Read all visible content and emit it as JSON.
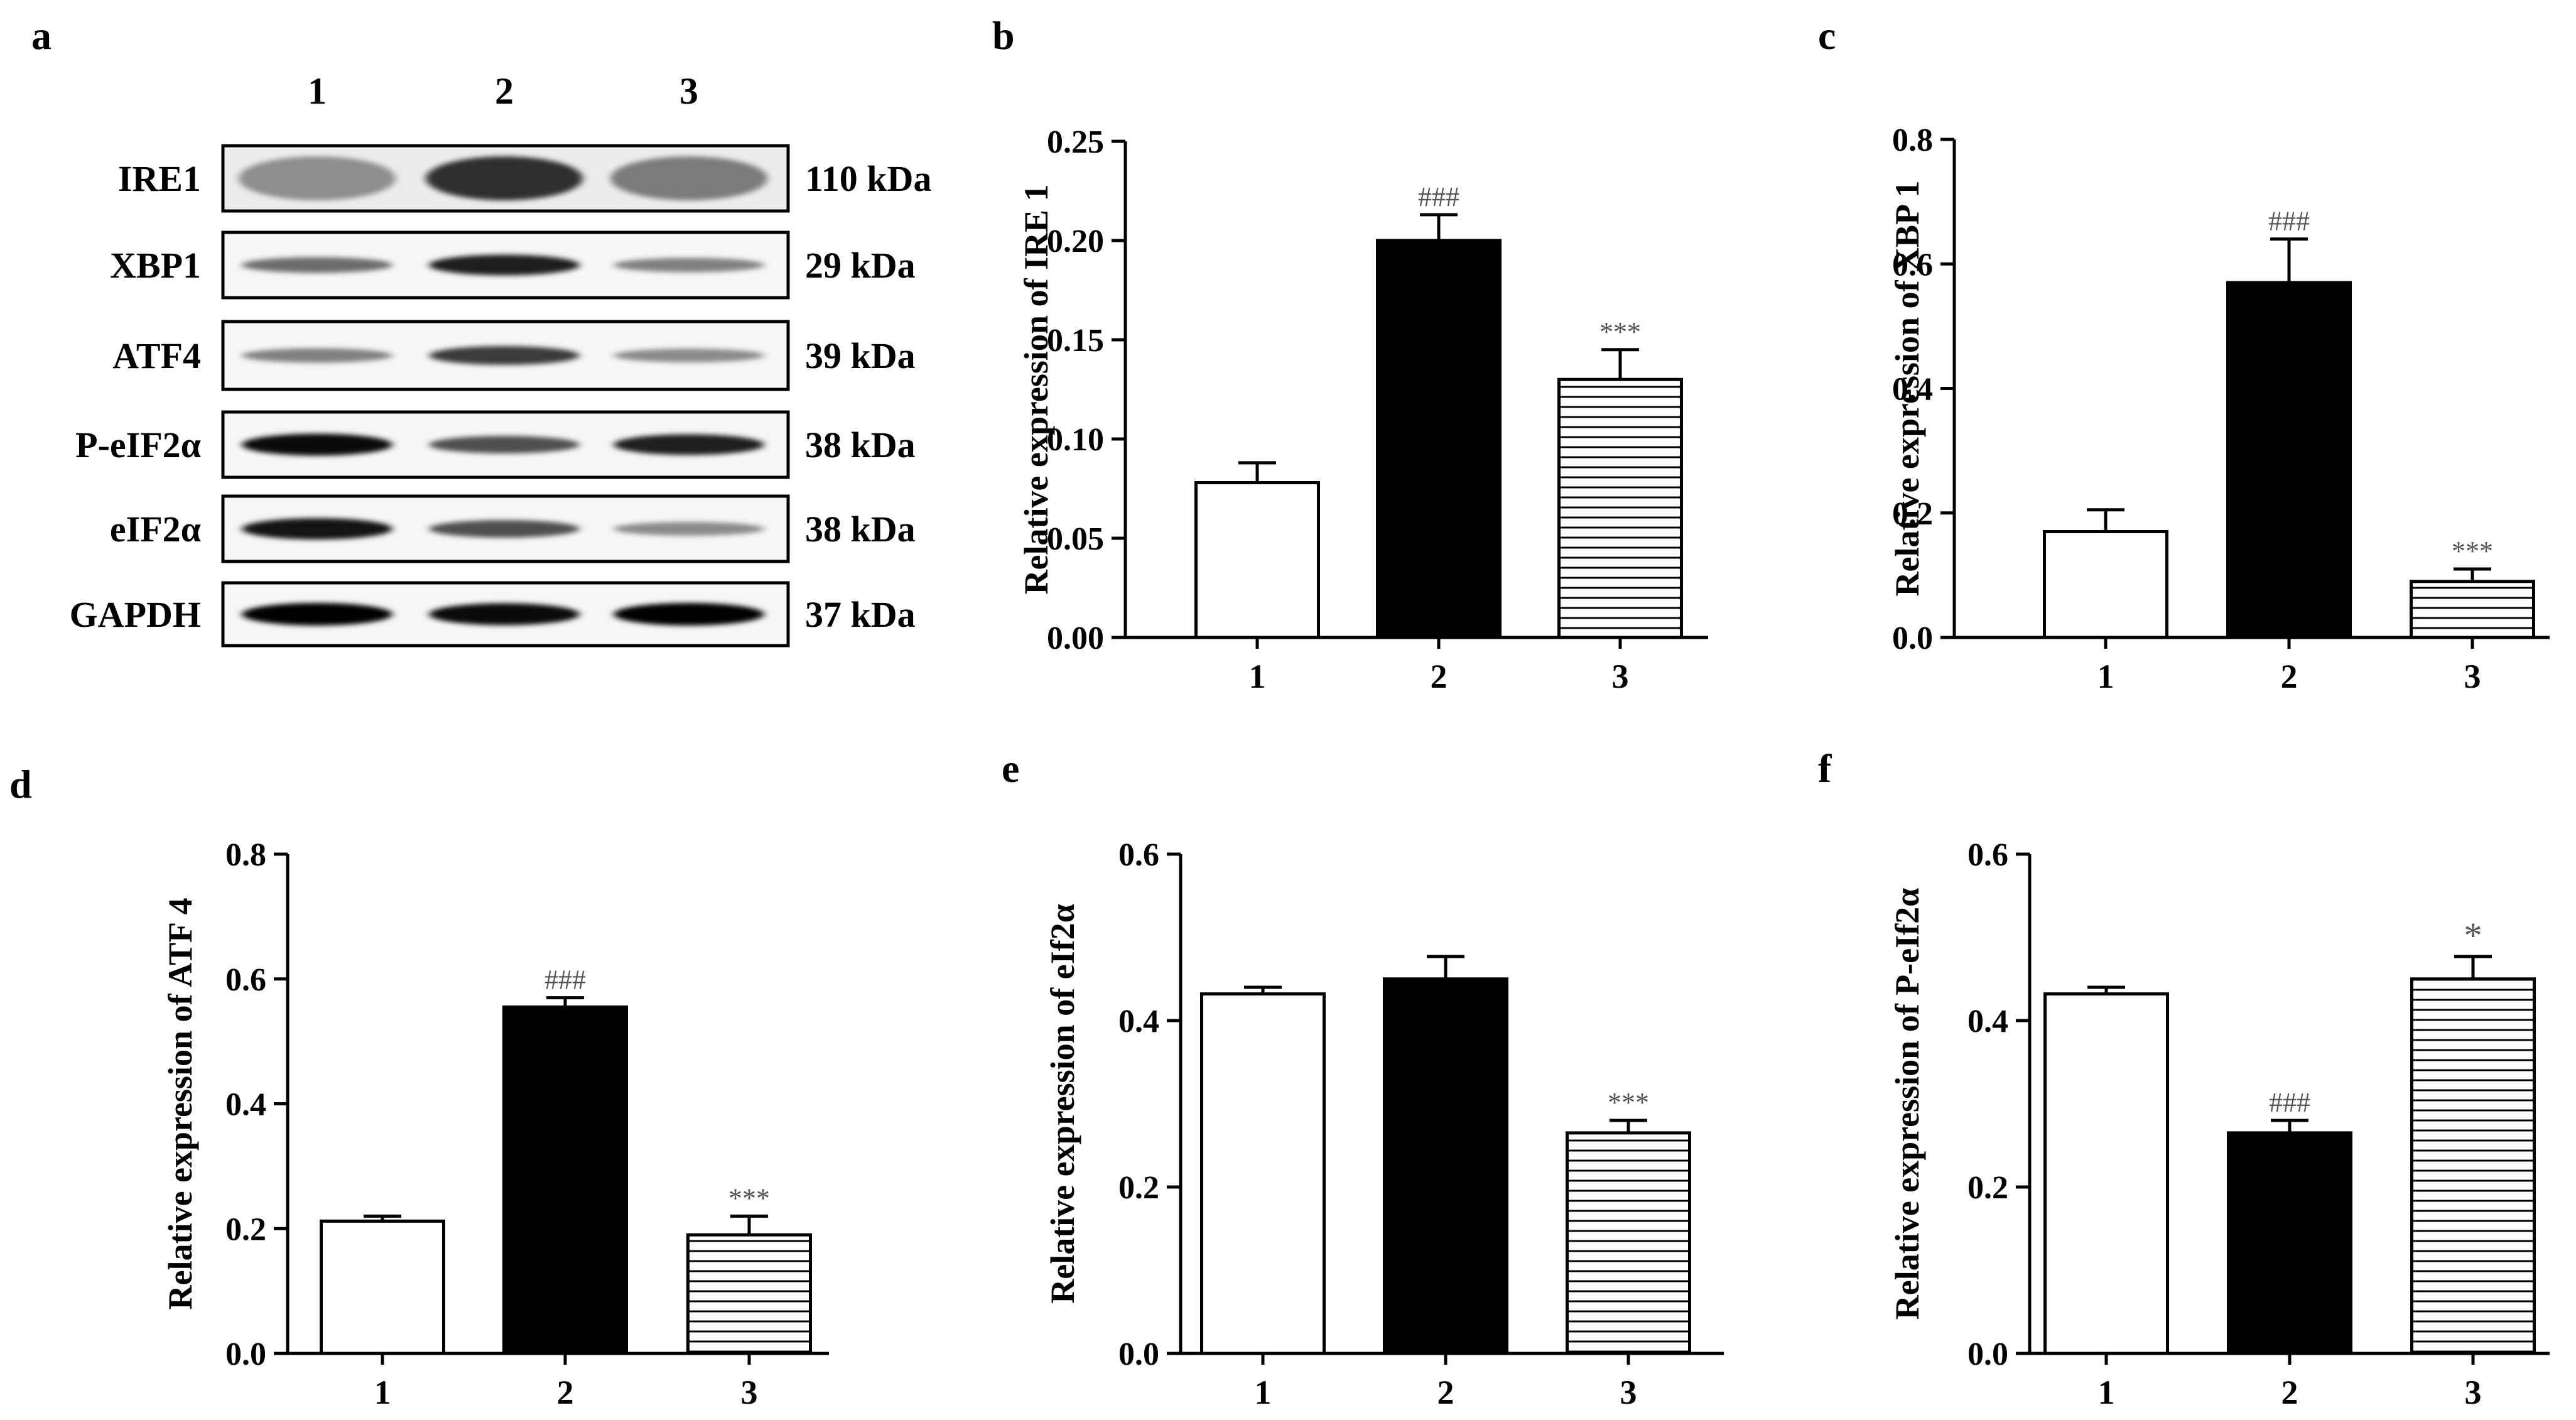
{
  "panel_letters": {
    "a": "a",
    "b": "b",
    "c": "c",
    "d": "d",
    "e": "e",
    "f": "f"
  },
  "western_blot": {
    "lane_labels": [
      "1",
      "2",
      "3"
    ],
    "rows": [
      {
        "protein": "IRE1",
        "size": "110 kDa",
        "intensity": [
          0.25,
          0.75,
          0.35
        ]
      },
      {
        "protein": "XBP1",
        "size": "29 kDa",
        "intensity": [
          0.45,
          0.85,
          0.35
        ]
      },
      {
        "protein": "ATF4",
        "size": "39 kDa",
        "intensity": [
          0.35,
          0.7,
          0.3
        ]
      },
      {
        "protein": "P-eIF2α",
        "size": "38 kDa",
        "intensity": [
          0.95,
          0.6,
          0.85
        ]
      },
      {
        "protein": "eIF2α",
        "size": "38 kDa",
        "intensity": [
          0.9,
          0.6,
          0.3
        ]
      },
      {
        "protein": "GAPDH",
        "size": "37 kDa",
        "intensity": [
          1.0,
          0.95,
          1.0
        ]
      }
    ]
  },
  "chart_data": [
    {
      "type": "bar",
      "panel": "b",
      "categories": [
        "1",
        "2",
        "3"
      ],
      "values": [
        0.078,
        0.2,
        0.13
      ],
      "errors": [
        0.01,
        0.013,
        0.015
      ],
      "annotations": [
        "",
        "###",
        "***"
      ],
      "ylabel": "Relative expression of IRE 1",
      "xlabel": "",
      "ylim": [
        0,
        0.25
      ],
      "yticks": [
        "0.00",
        "0.05",
        "0.10",
        "0.15",
        "0.20",
        "0.25"
      ]
    },
    {
      "type": "bar",
      "panel": "c",
      "categories": [
        "1",
        "2",
        "3"
      ],
      "values": [
        0.17,
        0.57,
        0.09
      ],
      "errors": [
        0.035,
        0.07,
        0.02
      ],
      "annotations": [
        "",
        "###",
        "***"
      ],
      "ylabel": "Relative expression of XBP 1",
      "xlabel": "",
      "ylim": [
        0,
        0.8
      ],
      "yticks": [
        "0.0",
        "0.2",
        "0.4",
        "0.6",
        "0.8"
      ]
    },
    {
      "type": "bar",
      "panel": "d",
      "categories": [
        "1",
        "2",
        "3"
      ],
      "values": [
        0.212,
        0.555,
        0.19
      ],
      "errors": [
        0.008,
        0.015,
        0.03
      ],
      "annotations": [
        "",
        "###",
        "***"
      ],
      "ylabel": "Relative expression of ATF 4",
      "xlabel": "",
      "ylim": [
        0,
        0.8
      ],
      "yticks": [
        "0.0",
        "0.2",
        "0.4",
        "0.6",
        "0.8"
      ]
    },
    {
      "type": "bar",
      "panel": "e",
      "categories": [
        "1",
        "2",
        "3"
      ],
      "values": [
        0.432,
        0.45,
        0.265
      ],
      "errors": [
        0.008,
        0.027,
        0.015
      ],
      "annotations": [
        "",
        "",
        "***"
      ],
      "ylabel": "Relative expression of eIf2α",
      "xlabel": "",
      "ylim": [
        0,
        0.6
      ],
      "yticks": [
        "0.0",
        "0.2",
        "0.4",
        "0.6"
      ]
    },
    {
      "type": "bar",
      "panel": "f",
      "categories": [
        "1",
        "2",
        "3"
      ],
      "values": [
        0.432,
        0.265,
        0.45
      ],
      "errors": [
        0.008,
        0.015,
        0.027
      ],
      "annotations": [
        "",
        "###",
        "*"
      ],
      "ylabel": "Relative expression of P-eIf2α",
      "xlabel": "",
      "ylim": [
        0,
        0.6
      ],
      "yticks": [
        "0.0",
        "0.2",
        "0.4",
        "0.6"
      ]
    }
  ],
  "bar_styles": [
    "open",
    "solid",
    "hatched"
  ],
  "colors": {
    "ink": "#000000",
    "background": "#ffffff",
    "annotation": "#555555"
  }
}
